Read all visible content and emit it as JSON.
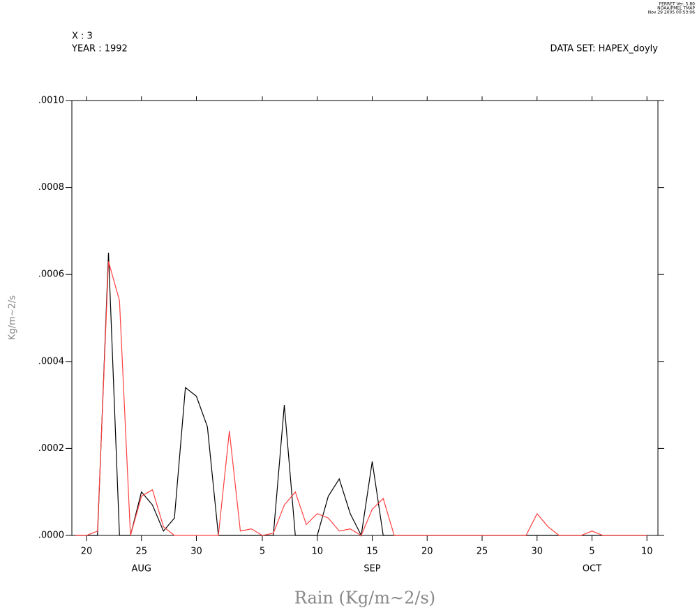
{
  "header": {
    "x_label": "X : 3",
    "year_label": "YEAR : 1992",
    "dataset": "DATA SET: HAPEX_doyly",
    "stamp": [
      "FERRET Ver. 5.80",
      "NOAA/PMEL TMAP",
      "Nov 29 2005 00:53:06"
    ]
  },
  "chart_data": {
    "type": "line",
    "xlabel": "Rain (Kg/m~2/s)",
    "ylabel": "Kg/m~2/s",
    "x": [
      "1992-08-19",
      "1992-08-20",
      "1992-08-21",
      "1992-08-22",
      "1992-08-23",
      "1992-08-24",
      "1992-08-25",
      "1992-08-26",
      "1992-08-27",
      "1992-08-28",
      "1992-08-29",
      "1992-08-30",
      "1992-08-31",
      "1992-09-01",
      "1992-09-02",
      "1992-09-03",
      "1992-09-04",
      "1992-09-05",
      "1992-09-06",
      "1992-09-07",
      "1992-09-08",
      "1992-09-09",
      "1992-09-10",
      "1992-09-11",
      "1992-09-12",
      "1992-09-13",
      "1992-09-14",
      "1992-09-15",
      "1992-09-16",
      "1992-09-17",
      "1992-09-18",
      "1992-09-19",
      "1992-09-20",
      "1992-09-21",
      "1992-09-22",
      "1992-09-23",
      "1992-09-24",
      "1992-09-25",
      "1992-09-26",
      "1992-09-27",
      "1992-09-28",
      "1992-09-29",
      "1992-09-30",
      "1992-10-01",
      "1992-10-02",
      "1992-10-03",
      "1992-10-04",
      "1992-10-05",
      "1992-10-06",
      "1992-10-07",
      "1992-10-08",
      "1992-10-09",
      "1992-10-10"
    ],
    "series": [
      {
        "color": "#000000",
        "values": [
          0,
          0,
          0,
          0.00065,
          0,
          0,
          0.0001,
          7e-05,
          1e-05,
          4e-05,
          0.00034,
          0.00032,
          0.00025,
          0,
          0,
          0,
          0,
          0,
          0,
          0.0003,
          0,
          0,
          0,
          9e-05,
          0.00013,
          5e-05,
          0,
          0.00017,
          0,
          0,
          0,
          0,
          0,
          0,
          0,
          0,
          0,
          0,
          0,
          0,
          0,
          0,
          0,
          0,
          0,
          0,
          0,
          0,
          0,
          0,
          0,
          0,
          0
        ]
      },
      {
        "color": "#ff4040",
        "values": [
          0,
          0,
          1e-05,
          0.00063,
          0.00054,
          0,
          9e-05,
          0.000105,
          2e-05,
          0,
          0,
          0,
          0,
          0,
          0.00024,
          1e-05,
          1.5e-05,
          0,
          5e-06,
          7e-05,
          0.0001,
          2.5e-05,
          5e-05,
          4e-05,
          1e-05,
          1.5e-05,
          0,
          6e-05,
          8.5e-05,
          0,
          0,
          0,
          0,
          0,
          0,
          0,
          0,
          0,
          0,
          0,
          0,
          0,
          5e-05,
          2e-05,
          0,
          0,
          0,
          1e-05,
          0,
          0,
          0,
          0,
          0
        ]
      }
    ],
    "xlim": [
      "1992-08-18T16:00:00Z",
      "1992-10-11T00:00:00Z"
    ],
    "xticks": [
      {
        "value": "1992-08-20",
        "label": "20"
      },
      {
        "value": "1992-08-25",
        "label": "25"
      },
      {
        "value": "1992-08-30",
        "label": "30"
      },
      {
        "value": "1992-09-05",
        "label": "5"
      },
      {
        "value": "1992-09-10",
        "label": "10"
      },
      {
        "value": "1992-09-15",
        "label": "15"
      },
      {
        "value": "1992-09-20",
        "label": "20"
      },
      {
        "value": "1992-09-25",
        "label": "25"
      },
      {
        "value": "1992-09-30",
        "label": "30"
      },
      {
        "value": "1992-10-05",
        "label": "5"
      },
      {
        "value": "1992-10-10",
        "label": "10"
      }
    ],
    "month_labels": [
      {
        "value": "1992-08-25",
        "label": "AUG"
      },
      {
        "value": "1992-09-15",
        "label": "SEP"
      },
      {
        "value": "1992-10-05",
        "label": "OCT"
      }
    ],
    "ylim": [
      0,
      0.001
    ],
    "yticks": [
      {
        "value": 0,
        "label": ".0000"
      },
      {
        "value": 0.0002,
        "label": ".0002"
      },
      {
        "value": 0.0004,
        "label": ".0004"
      },
      {
        "value": 0.0006,
        "label": ".0006"
      },
      {
        "value": 0.0008,
        "label": ".0008"
      },
      {
        "value": 0.001,
        "label": ".0010"
      }
    ]
  }
}
